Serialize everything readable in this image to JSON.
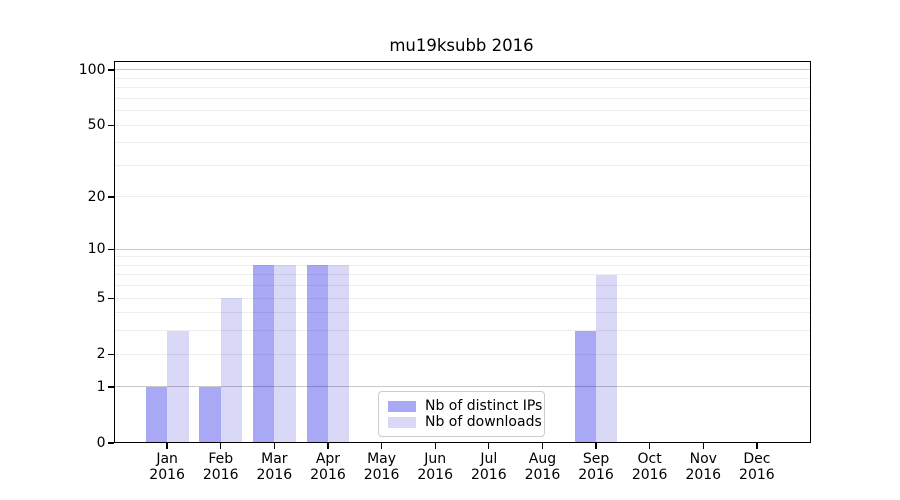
{
  "chart_data": {
    "type": "bar",
    "title": "mu19ksubb 2016",
    "xlabel": "",
    "ylabel": "",
    "year": "2016",
    "categories": [
      "Jan",
      "Feb",
      "Mar",
      "Apr",
      "May",
      "Jun",
      "Jul",
      "Aug",
      "Sep",
      "Oct",
      "Nov",
      "Dec"
    ],
    "x_tick_labels": [
      [
        "Jan",
        "2016"
      ],
      [
        "Feb",
        "2016"
      ],
      [
        "Mar",
        "2016"
      ],
      [
        "Apr",
        "2016"
      ],
      [
        "May",
        "2016"
      ],
      [
        "Jun",
        "2016"
      ],
      [
        "Jul",
        "2016"
      ],
      [
        "Aug",
        "2016"
      ],
      [
        "Sep",
        "2016"
      ],
      [
        "Oct",
        "2016"
      ],
      [
        "Nov",
        "2016"
      ],
      [
        "Dec",
        "2016"
      ]
    ],
    "series": [
      {
        "name": "Nb of distinct IPs",
        "values": [
          1,
          1,
          8,
          8,
          0,
          0,
          0,
          0,
          3,
          0,
          0,
          0
        ],
        "color": "#a9a9f5",
        "color_rgba": "rgba(0,0,226,0.34)"
      },
      {
        "name": "Nb of downloads",
        "values": [
          3,
          5,
          8,
          8,
          0,
          0,
          0,
          0,
          7,
          0,
          0,
          0
        ],
        "color": "#d9d9f7",
        "color_rgba": "rgba(0,0,202,0.15)"
      }
    ],
    "y_axis": {
      "scale": "log1p",
      "range": [
        0,
        100
      ],
      "ticks": [
        0,
        1,
        2,
        5,
        10,
        20,
        50,
        100
      ],
      "major_gridlines": [
        1,
        10,
        100
      ],
      "minor_gridlines": [
        2,
        3,
        4,
        5,
        6,
        7,
        8,
        9,
        20,
        30,
        40,
        50,
        60,
        70,
        80,
        90
      ]
    },
    "grid": true,
    "legend_position": "lower center",
    "colors": {
      "background": "#ffffff",
      "axis": "#000000",
      "text": "#000000",
      "grid_major": "#c8c8c8",
      "grid_minor": "#ededed"
    }
  }
}
